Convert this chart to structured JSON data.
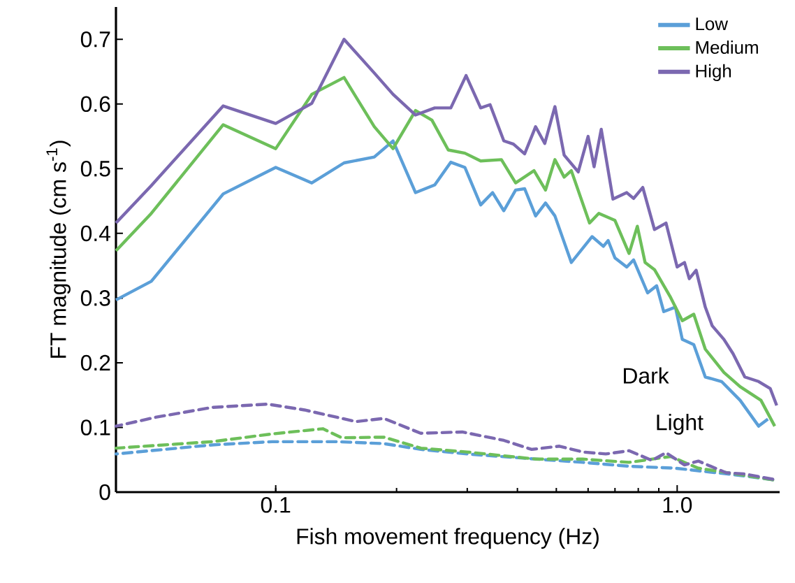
{
  "chart_data": {
    "type": "line",
    "xlabel": "Fish movement frequency (Hz)",
    "ylabel": "FT magnitude (cm s$^{-1}$)",
    "log": "x",
    "legend": "top right",
    "xlim": [
      0.04,
      1.8
    ],
    "xticks": [
      0.1,
      {
        "value": 1,
        "label": "1.0"
      }
    ],
    "ylim": [
      0,
      0.75
    ],
    "yticks": [
      0,
      0.1,
      0.2,
      0.3,
      0.4,
      0.5,
      0.6,
      0.7
    ],
    "annotations": [
      "Dark",
      "Light"
    ],
    "series": [
      {
        "name": "Low",
        "color": "#5b9fd8",
        "line_style": "solid",
        "x": [
          0.04,
          0.049,
          0.074,
          0.1,
          0.123,
          0.148,
          0.176,
          0.196,
          0.223,
          0.249,
          0.273,
          0.296,
          0.324,
          0.347,
          0.37,
          0.396,
          0.417,
          0.444,
          0.47,
          0.496,
          0.545,
          0.614,
          0.655,
          0.673,
          0.7,
          0.749,
          0.779,
          0.844,
          0.889,
          0.926,
          0.99,
          1.03,
          1.1,
          1.175,
          1.29,
          1.435,
          1.596,
          1.683
        ],
        "values": [
          0.297,
          0.326,
          0.461,
          0.502,
          0.478,
          0.509,
          0.518,
          0.543,
          0.463,
          0.475,
          0.51,
          0.502,
          0.444,
          0.463,
          0.435,
          0.467,
          0.469,
          0.427,
          0.447,
          0.427,
          0.355,
          0.395,
          0.38,
          0.389,
          0.362,
          0.348,
          0.359,
          0.308,
          0.319,
          0.279,
          0.286,
          0.236,
          0.228,
          0.178,
          0.171,
          0.142,
          0.102,
          0.113
        ]
      },
      {
        "name": "Medium",
        "color": "#6dbf5a",
        "line_style": "solid",
        "x": [
          0.04,
          0.049,
          0.074,
          0.1,
          0.123,
          0.148,
          0.176,
          0.196,
          0.223,
          0.245,
          0.269,
          0.296,
          0.324,
          0.365,
          0.396,
          0.44,
          0.47,
          0.496,
          0.523,
          0.545,
          0.605,
          0.638,
          0.7,
          0.759,
          0.796,
          0.832,
          0.878,
          0.963,
          1.03,
          1.1,
          1.175,
          1.308,
          1.435,
          1.617,
          1.75
        ],
        "values": [
          0.373,
          0.431,
          0.568,
          0.531,
          0.615,
          0.641,
          0.565,
          0.531,
          0.59,
          0.575,
          0.529,
          0.524,
          0.512,
          0.514,
          0.478,
          0.497,
          0.467,
          0.514,
          0.487,
          0.497,
          0.416,
          0.431,
          0.42,
          0.369,
          0.411,
          0.355,
          0.344,
          0.301,
          0.265,
          0.275,
          0.221,
          0.185,
          0.163,
          0.142,
          0.102
        ]
      },
      {
        "name": "High",
        "color": "#7b68b0",
        "line_style": "solid",
        "x": [
          0.04,
          0.049,
          0.074,
          0.1,
          0.123,
          0.148,
          0.176,
          0.196,
          0.223,
          0.249,
          0.273,
          0.298,
          0.324,
          0.342,
          0.37,
          0.391,
          0.417,
          0.444,
          0.468,
          0.496,
          0.523,
          0.567,
          0.6,
          0.621,
          0.647,
          0.692,
          0.749,
          0.779,
          0.821,
          0.878,
          0.938,
          1.0,
          1.043,
          1.072,
          1.115,
          1.175,
          1.223,
          1.308,
          1.378,
          1.474,
          1.596,
          1.706,
          1.77
        ],
        "values": [
          0.416,
          0.474,
          0.597,
          0.57,
          0.601,
          0.7,
          0.648,
          0.615,
          0.583,
          0.594,
          0.594,
          0.644,
          0.594,
          0.599,
          0.543,
          0.538,
          0.523,
          0.565,
          0.539,
          0.596,
          0.521,
          0.495,
          0.55,
          0.503,
          0.561,
          0.453,
          0.463,
          0.454,
          0.471,
          0.406,
          0.416,
          0.348,
          0.355,
          0.33,
          0.343,
          0.286,
          0.257,
          0.236,
          0.214,
          0.178,
          0.171,
          0.16,
          0.134
        ]
      },
      {
        "color": "#5b9fd8",
        "line_style": "dashed",
        "x": [
          0.04,
          0.0695,
          0.098,
          0.142,
          0.186,
          0.23,
          0.2996,
          0.446,
          0.582,
          0.759,
          0.99,
          1.474,
          1.73
        ],
        "values": [
          0.059,
          0.073,
          0.078,
          0.078,
          0.075,
          0.066,
          0.059,
          0.051,
          0.046,
          0.04,
          0.037,
          0.025,
          0.019
        ]
      },
      {
        "color": "#6dbf5a",
        "line_style": "dashed",
        "x": [
          0.04,
          0.0695,
          0.098,
          0.131,
          0.146,
          0.186,
          0.23,
          0.2996,
          0.446,
          0.582,
          0.759,
          0.963,
          1.129,
          1.474,
          1.73
        ],
        "values": [
          0.068,
          0.078,
          0.09,
          0.098,
          0.084,
          0.085,
          0.068,
          0.062,
          0.051,
          0.051,
          0.046,
          0.055,
          0.037,
          0.026,
          0.019
        ]
      },
      {
        "color": "#7b68b0",
        "line_style": "dashed",
        "x": [
          0.04,
          0.0505,
          0.0695,
          0.0956,
          0.118,
          0.1585,
          0.186,
          0.2296,
          0.2915,
          0.37,
          0.434,
          0.509,
          0.582,
          0.664,
          0.759,
          0.866,
          0.938,
          1.043,
          1.129,
          1.324,
          1.474,
          1.73
        ],
        "values": [
          0.102,
          0.116,
          0.131,
          0.136,
          0.127,
          0.109,
          0.114,
          0.091,
          0.093,
          0.08,
          0.066,
          0.071,
          0.062,
          0.059,
          0.064,
          0.049,
          0.061,
          0.042,
          0.048,
          0.03,
          0.028,
          0.02
        ]
      }
    ]
  }
}
